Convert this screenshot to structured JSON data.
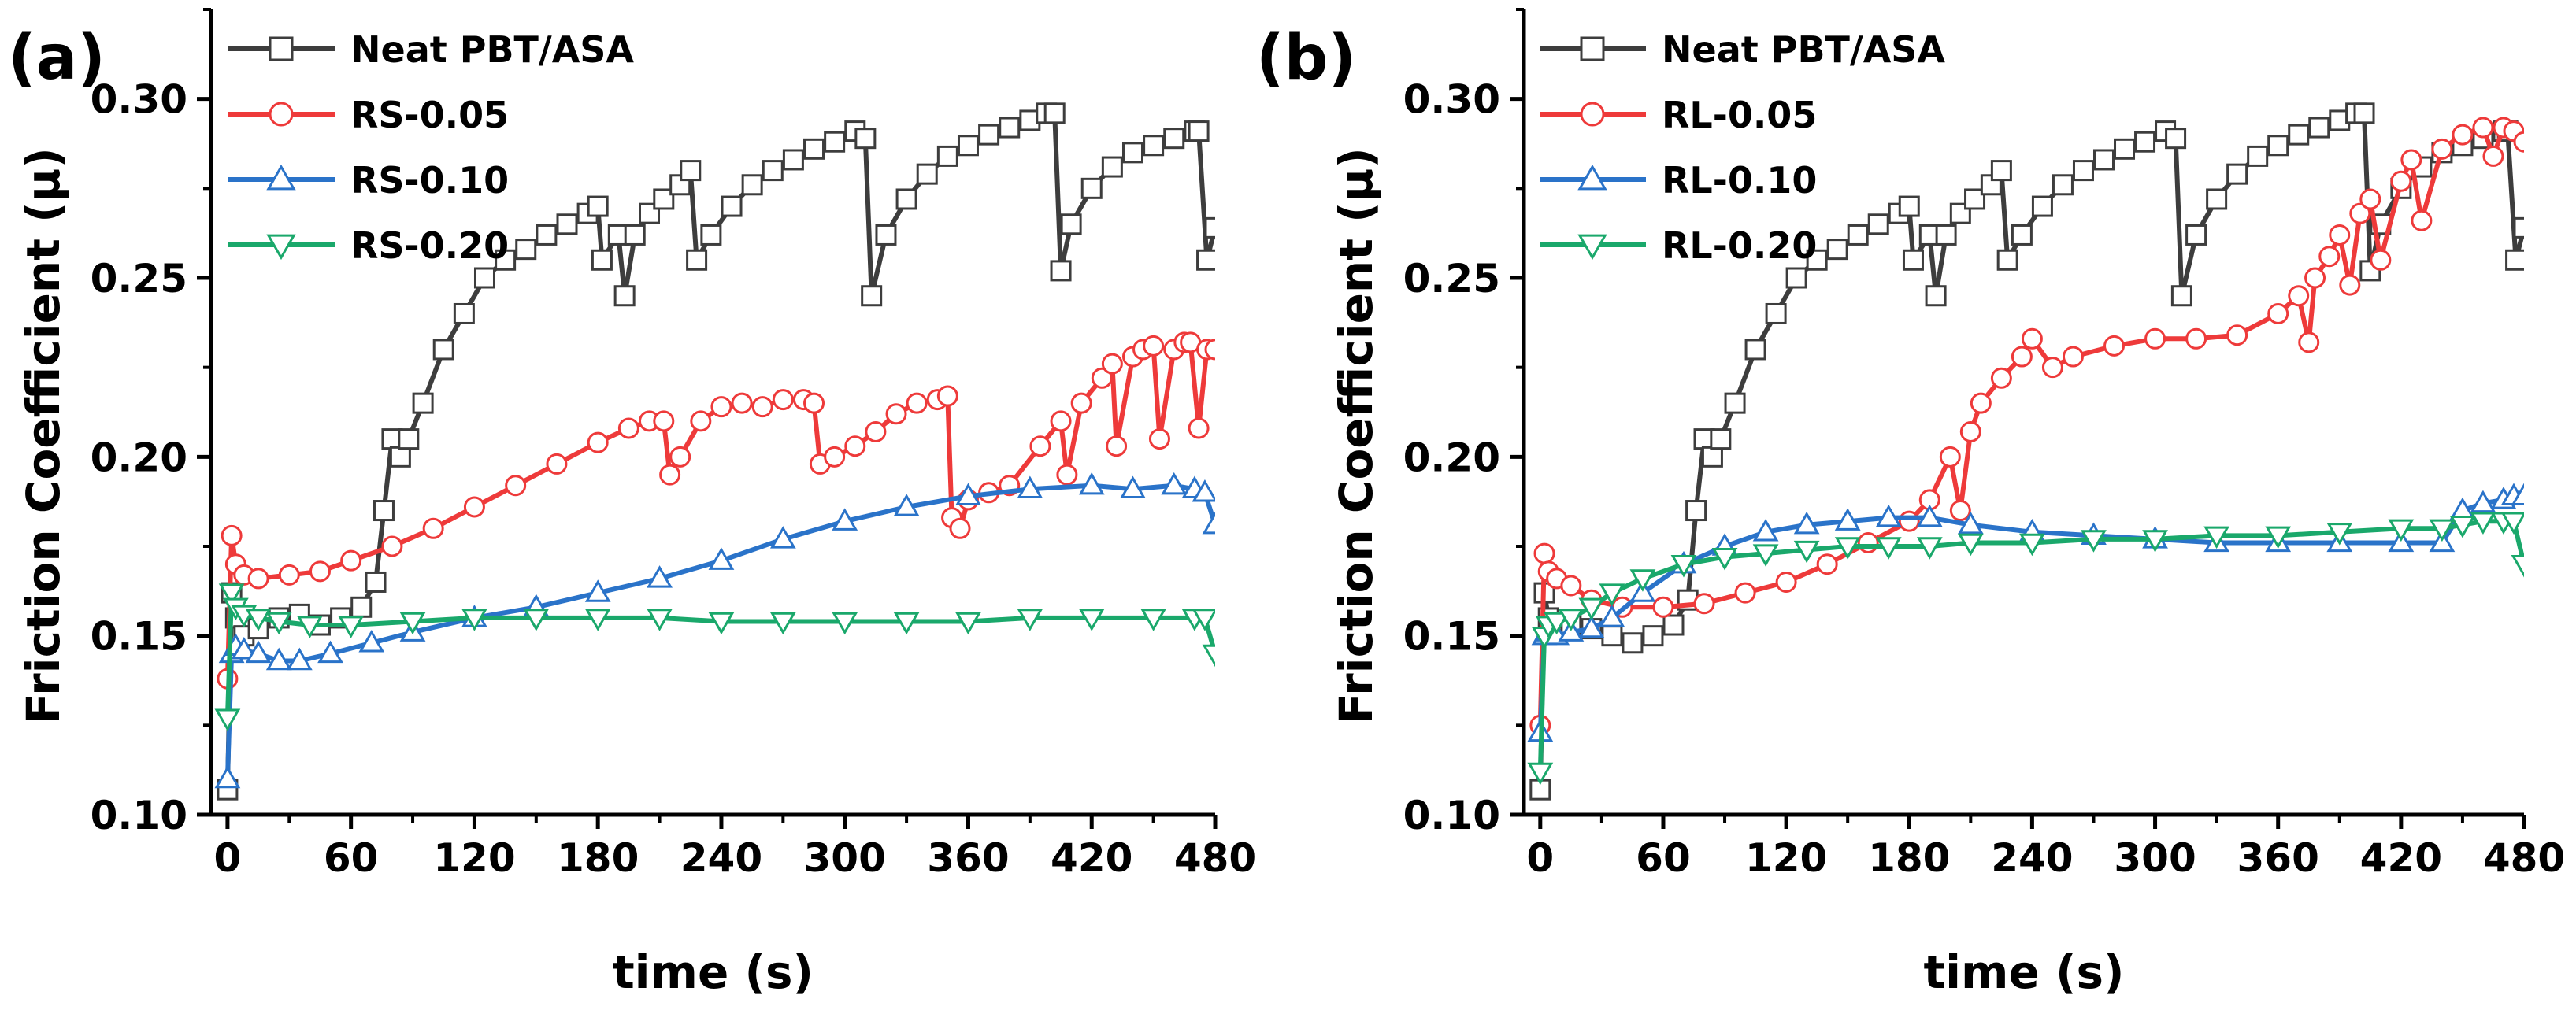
{
  "figure": {
    "colors": {
      "neat": "#3d3d3d",
      "red": "#ee3a3a",
      "blue": "#2a73c9",
      "green": "#1aa86b"
    }
  },
  "chart_data": [
    {
      "type": "line",
      "panel_label": "(a)",
      "xlabel": "time (s)",
      "ylabel": "Friction Coefficient (μ)",
      "xlim": [
        -8,
        480
      ],
      "ylim": [
        0.1,
        0.325
      ],
      "xticks": [
        0,
        60,
        120,
        180,
        240,
        300,
        360,
        420,
        480
      ],
      "yticks": [
        0.1,
        0.15,
        0.2,
        0.25,
        0.3
      ],
      "xtick_labels": [
        "0",
        "60",
        "120",
        "180",
        "240",
        "300",
        "360",
        "420",
        "480"
      ],
      "ytick_labels": [
        "0.10",
        "0.15",
        "0.20",
        "0.25",
        "0.30"
      ],
      "legend_position": "top-left",
      "series": [
        {
          "name": "Neat PBT/ASA",
          "color": "#3d3d3d",
          "marker": "square",
          "x": [
            0,
            2,
            4,
            8,
            15,
            25,
            35,
            45,
            55,
            65,
            72,
            76,
            80,
            84,
            88,
            95,
            105,
            115,
            125,
            135,
            145,
            155,
            165,
            175,
            180,
            182,
            190,
            193,
            198,
            205,
            212,
            220,
            225,
            228,
            235,
            245,
            255,
            265,
            275,
            285,
            295,
            305,
            310,
            313,
            320,
            330,
            340,
            350,
            360,
            370,
            380,
            390,
            398,
            402,
            405,
            410,
            420,
            430,
            440,
            450,
            460,
            470,
            472,
            476,
            480
          ],
          "y": [
            0.107,
            0.162,
            0.155,
            0.15,
            0.152,
            0.155,
            0.156,
            0.153,
            0.155,
            0.158,
            0.165,
            0.185,
            0.205,
            0.2,
            0.205,
            0.215,
            0.23,
            0.24,
            0.25,
            0.255,
            0.258,
            0.262,
            0.265,
            0.268,
            0.27,
            0.255,
            0.262,
            0.245,
            0.262,
            0.268,
            0.272,
            0.276,
            0.28,
            0.255,
            0.262,
            0.27,
            0.276,
            0.28,
            0.283,
            0.286,
            0.288,
            0.291,
            0.289,
            0.245,
            0.262,
            0.272,
            0.279,
            0.284,
            0.287,
            0.29,
            0.292,
            0.294,
            0.296,
            0.296,
            0.252,
            0.265,
            0.275,
            0.281,
            0.285,
            0.287,
            0.289,
            0.291,
            0.291,
            0.255,
            0.264
          ]
        },
        {
          "name": "RS-0.05",
          "color": "#ee3a3a",
          "marker": "circle",
          "x": [
            0,
            2,
            4,
            8,
            15,
            30,
            45,
            60,
            80,
            100,
            120,
            140,
            160,
            180,
            195,
            205,
            212,
            215,
            220,
            230,
            240,
            250,
            260,
            270,
            280,
            285,
            288,
            295,
            305,
            315,
            325,
            335,
            345,
            350,
            352,
            356,
            360,
            370,
            380,
            395,
            405,
            408,
            415,
            425,
            430,
            432,
            440,
            445,
            450,
            453,
            460,
            465,
            468,
            472,
            476,
            480
          ],
          "y": [
            0.138,
            0.178,
            0.17,
            0.167,
            0.166,
            0.167,
            0.168,
            0.171,
            0.175,
            0.18,
            0.186,
            0.192,
            0.198,
            0.204,
            0.208,
            0.21,
            0.21,
            0.195,
            0.2,
            0.21,
            0.214,
            0.215,
            0.214,
            0.216,
            0.216,
            0.215,
            0.198,
            0.2,
            0.203,
            0.207,
            0.212,
            0.215,
            0.216,
            0.217,
            0.183,
            0.18,
            0.188,
            0.19,
            0.192,
            0.203,
            0.21,
            0.195,
            0.215,
            0.222,
            0.226,
            0.203,
            0.228,
            0.23,
            0.231,
            0.205,
            0.23,
            0.232,
            0.232,
            0.208,
            0.23,
            0.23
          ]
        },
        {
          "name": "RS-0.10",
          "color": "#2a73c9",
          "marker": "triangle-up",
          "x": [
            0,
            2,
            4,
            8,
            15,
            25,
            35,
            50,
            70,
            90,
            120,
            150,
            180,
            210,
            240,
            270,
            300,
            330,
            360,
            390,
            420,
            440,
            460,
            470,
            475,
            480
          ],
          "y": [
            0.11,
            0.145,
            0.147,
            0.146,
            0.145,
            0.143,
            0.143,
            0.145,
            0.148,
            0.151,
            0.155,
            0.158,
            0.162,
            0.166,
            0.171,
            0.177,
            0.182,
            0.186,
            0.189,
            0.191,
            0.192,
            0.191,
            0.192,
            0.191,
            0.19,
            0.181
          ]
        },
        {
          "name": "RS-0.20",
          "color": "#1aa86b",
          "marker": "triangle-down",
          "x": [
            0,
            2,
            4,
            8,
            15,
            25,
            40,
            60,
            90,
            120,
            150,
            180,
            210,
            240,
            270,
            300,
            330,
            360,
            390,
            420,
            450,
            470,
            475,
            480
          ],
          "y": [
            0.127,
            0.162,
            0.158,
            0.156,
            0.155,
            0.154,
            0.153,
            0.153,
            0.154,
            0.155,
            0.155,
            0.155,
            0.155,
            0.154,
            0.154,
            0.154,
            0.154,
            0.154,
            0.155,
            0.155,
            0.155,
            0.155,
            0.155,
            0.145
          ]
        }
      ]
    },
    {
      "type": "line",
      "panel_label": "(b)",
      "xlabel": "time (s)",
      "ylabel": "Friction Coefficient (μ)",
      "xlim": [
        -8,
        480
      ],
      "ylim": [
        0.1,
        0.325
      ],
      "xticks": [
        0,
        60,
        120,
        180,
        240,
        300,
        360,
        420,
        480
      ],
      "yticks": [
        0.1,
        0.15,
        0.2,
        0.25,
        0.3
      ],
      "xtick_labels": [
        "0",
        "60",
        "120",
        "180",
        "240",
        "300",
        "360",
        "420",
        "480"
      ],
      "ytick_labels": [
        "0.10",
        "0.15",
        "0.20",
        "0.25",
        "0.30"
      ],
      "legend_position": "top-left",
      "series": [
        {
          "name": "Neat PBT/ASA",
          "color": "#3d3d3d",
          "marker": "square",
          "x": [
            0,
            2,
            4,
            8,
            15,
            25,
            35,
            45,
            55,
            65,
            72,
            76,
            80,
            84,
            88,
            95,
            105,
            115,
            125,
            135,
            145,
            155,
            165,
            175,
            180,
            182,
            190,
            193,
            198,
            205,
            212,
            220,
            225,
            228,
            235,
            245,
            255,
            265,
            275,
            285,
            295,
            305,
            310,
            313,
            320,
            330,
            340,
            350,
            360,
            370,
            380,
            390,
            398,
            402,
            405,
            410,
            420,
            430,
            440,
            450,
            460,
            470,
            472,
            476,
            480
          ],
          "y": [
            0.107,
            0.162,
            0.155,
            0.152,
            0.153,
            0.152,
            0.15,
            0.148,
            0.15,
            0.153,
            0.16,
            0.185,
            0.205,
            0.2,
            0.205,
            0.215,
            0.23,
            0.24,
            0.25,
            0.255,
            0.258,
            0.262,
            0.265,
            0.268,
            0.27,
            0.255,
            0.262,
            0.245,
            0.262,
            0.268,
            0.272,
            0.276,
            0.28,
            0.255,
            0.262,
            0.27,
            0.276,
            0.28,
            0.283,
            0.286,
            0.288,
            0.291,
            0.289,
            0.245,
            0.262,
            0.272,
            0.279,
            0.284,
            0.287,
            0.29,
            0.292,
            0.294,
            0.296,
            0.296,
            0.252,
            0.265,
            0.275,
            0.281,
            0.285,
            0.287,
            0.289,
            0.291,
            0.291,
            0.255,
            0.264
          ]
        },
        {
          "name": "RL-0.05",
          "color": "#ee3a3a",
          "marker": "circle",
          "x": [
            0,
            2,
            4,
            8,
            15,
            25,
            40,
            60,
            80,
            100,
            120,
            140,
            160,
            180,
            190,
            200,
            205,
            210,
            215,
            225,
            235,
            240,
            250,
            260,
            280,
            300,
            320,
            340,
            360,
            370,
            375,
            378,
            385,
            390,
            395,
            400,
            405,
            410,
            420,
            425,
            430,
            440,
            450,
            460,
            465,
            470,
            475,
            480
          ],
          "y": [
            0.125,
            0.173,
            0.168,
            0.166,
            0.164,
            0.16,
            0.158,
            0.158,
            0.159,
            0.162,
            0.165,
            0.17,
            0.176,
            0.182,
            0.188,
            0.2,
            0.185,
            0.207,
            0.215,
            0.222,
            0.228,
            0.233,
            0.225,
            0.228,
            0.231,
            0.233,
            0.233,
            0.234,
            0.24,
            0.245,
            0.232,
            0.25,
            0.256,
            0.262,
            0.248,
            0.268,
            0.272,
            0.255,
            0.277,
            0.283,
            0.266,
            0.286,
            0.29,
            0.292,
            0.284,
            0.292,
            0.291,
            0.288
          ]
        },
        {
          "name": "RL-0.10",
          "color": "#2a73c9",
          "marker": "triangle-up",
          "x": [
            0,
            2,
            4,
            8,
            15,
            25,
            35,
            50,
            70,
            90,
            110,
            130,
            150,
            170,
            190,
            210,
            240,
            270,
            300,
            330,
            360,
            390,
            420,
            440,
            450,
            460,
            470,
            475,
            480
          ],
          "y": [
            0.123,
            0.15,
            0.151,
            0.15,
            0.151,
            0.152,
            0.155,
            0.162,
            0.17,
            0.175,
            0.179,
            0.181,
            0.182,
            0.183,
            0.183,
            0.181,
            0.179,
            0.178,
            0.177,
            0.176,
            0.176,
            0.176,
            0.176,
            0.176,
            0.185,
            0.187,
            0.188,
            0.189,
            0.189
          ]
        },
        {
          "name": "RL-0.20",
          "color": "#1aa86b",
          "marker": "triangle-down",
          "x": [
            0,
            2,
            4,
            8,
            15,
            25,
            35,
            50,
            70,
            90,
            110,
            130,
            150,
            170,
            190,
            210,
            240,
            270,
            300,
            330,
            360,
            390,
            420,
            440,
            450,
            460,
            470,
            475,
            480
          ],
          "y": [
            0.112,
            0.15,
            0.153,
            0.154,
            0.155,
            0.158,
            0.162,
            0.166,
            0.17,
            0.172,
            0.173,
            0.174,
            0.175,
            0.175,
            0.175,
            0.176,
            0.176,
            0.177,
            0.177,
            0.178,
            0.178,
            0.179,
            0.18,
            0.18,
            0.181,
            0.182,
            0.182,
            0.182,
            0.17
          ]
        }
      ]
    }
  ]
}
